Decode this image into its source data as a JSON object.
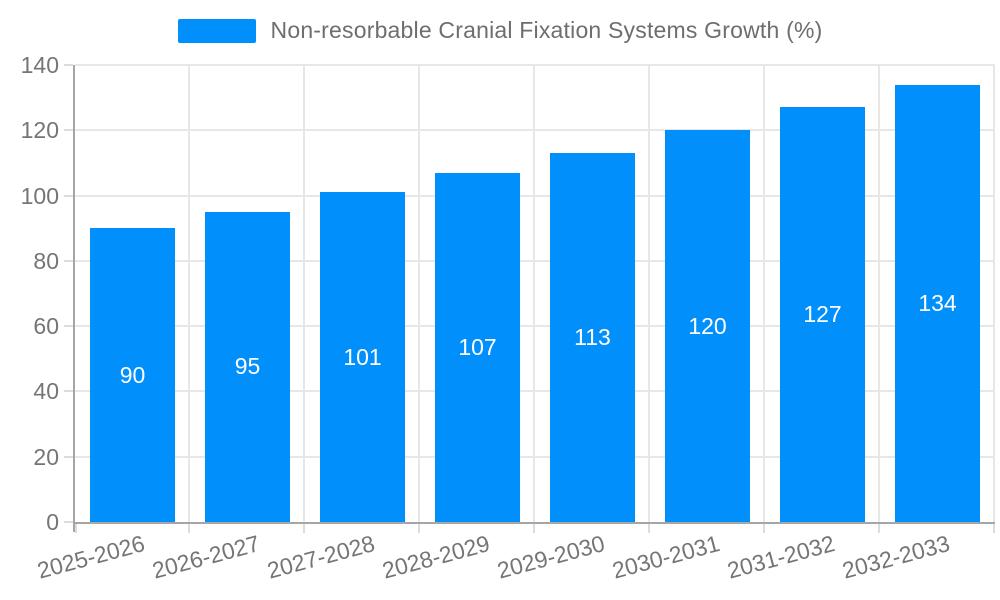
{
  "chart_data": {
    "type": "bar",
    "title": "Non-resorbable Cranial Fixation Systems Growth (%)",
    "categories": [
      "2025-2026",
      "2026-2027",
      "2027-2028",
      "2028-2029",
      "2029-2030",
      "2030-2031",
      "2031-2032",
      "2032-2033"
    ],
    "values": [
      90,
      95,
      101,
      107,
      113,
      120,
      127,
      134
    ],
    "xlabel": "",
    "ylabel": "",
    "ylim": [
      0,
      140
    ],
    "yticks": [
      0,
      20,
      40,
      60,
      80,
      100,
      120,
      140
    ],
    "grid": true,
    "legend_position": "top",
    "value_labels_shown": true,
    "colors": {
      "bar": "#008FFB",
      "value_label": "#FFFFFF",
      "axis_text": "#757575",
      "legend_text": "#6E6E6E",
      "grid": "#E7E7E7",
      "tick": "#DCDCDC",
      "axis_line": "#A6A6A6"
    }
  }
}
